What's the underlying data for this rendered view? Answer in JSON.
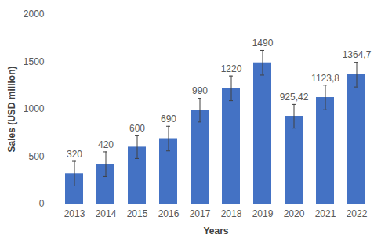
{
  "chart_data": {
    "type": "bar",
    "x_label": "Years",
    "y_label": "Sales (USD million)",
    "categories": [
      "2013",
      "2014",
      "2015",
      "2016",
      "2017",
      "2018",
      "2019",
      "2020",
      "2021",
      "2022"
    ],
    "values": [
      320,
      420,
      600,
      690,
      990,
      1220,
      1490,
      925.42,
      1123.8,
      1364.7
    ],
    "value_labels": [
      "320",
      "420",
      "600",
      "690",
      "990",
      "1220",
      "1490",
      "925,42",
      "1123,8",
      "1364,7"
    ],
    "errors": [
      130,
      130,
      120,
      130,
      125,
      130,
      130,
      125,
      130,
      130
    ],
    "color": "#4472c4",
    "ylim": [
      0,
      2000
    ],
    "yticks": [
      0,
      500,
      1000,
      1500,
      2000
    ],
    "grid": false,
    "data_labels": true
  }
}
